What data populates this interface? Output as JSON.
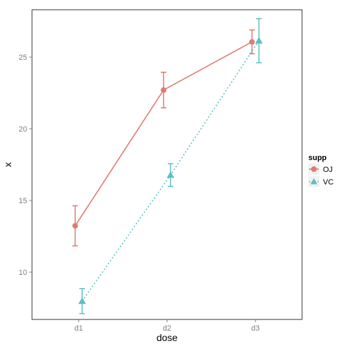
{
  "chart_data": {
    "type": "line",
    "xlabel": "dose",
    "ylabel": "x",
    "categories": [
      "d1",
      "d2",
      "d3"
    ],
    "y_ticks": [
      10,
      15,
      20,
      25
    ],
    "ylim": [
      6.7,
      28.3
    ],
    "grid": false,
    "legend": {
      "title": "supp",
      "placement": "right"
    },
    "series": [
      {
        "name": "OJ",
        "color": "#E07B6F",
        "marker": "circle",
        "line_style": "solid",
        "values": [
          13.23,
          22.7,
          26.06
        ],
        "error_low": [
          11.83,
          21.46,
          25.23
        ],
        "error_high": [
          14.63,
          23.94,
          26.89
        ]
      },
      {
        "name": "VC",
        "color": "#5FBFC4",
        "marker": "triangle",
        "line_style": "dotted",
        "values": [
          7.98,
          16.77,
          26.14
        ],
        "error_low": [
          7.11,
          15.98,
          24.6
        ],
        "error_high": [
          8.85,
          17.56,
          27.68
        ]
      }
    ]
  }
}
